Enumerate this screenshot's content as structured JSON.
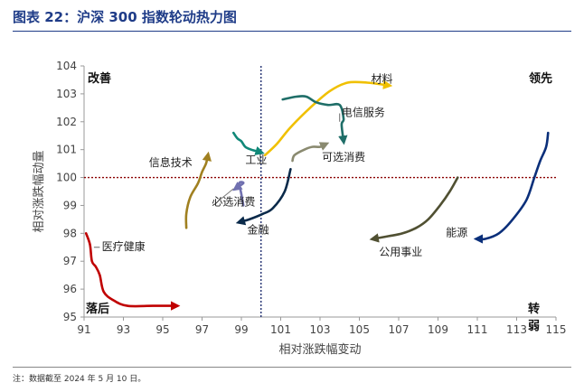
{
  "header": {
    "title": "图表 22：沪深 300 指数轮动热力图"
  },
  "footer": {
    "note": "注：数据截至 2024 年 5 月 10 日。"
  },
  "chart_data": {
    "type": "line",
    "xlabel": "相对涨跌幅变动",
    "ylabel": "相对涨跌幅动量",
    "xlim": [
      91,
      115
    ],
    "ylim": [
      95,
      104
    ],
    "x_ticks": [
      91,
      93,
      95,
      97,
      99,
      101,
      103,
      105,
      107,
      109,
      111,
      113,
      115
    ],
    "y_ticks": [
      95,
      96,
      97,
      98,
      99,
      100,
      101,
      102,
      103,
      104
    ],
    "x_tick_labels": [
      "91",
      "93",
      "95",
      "97",
      "99",
      "101",
      "103",
      "105",
      "107",
      "109",
      "111",
      "113",
      "115"
    ],
    "y_tick_labels": [
      "95",
      "96",
      "97",
      "98",
      "99",
      "100",
      "101",
      "102",
      "103",
      "104"
    ],
    "ref_x": 100,
    "ref_y": 100,
    "quadrants": {
      "top_left": "改善",
      "top_right": "领先",
      "bottom_left": "落后",
      "bottom_right": "转弱"
    },
    "series": [
      {
        "name": "医疗健康",
        "color": "#c00000",
        "points": [
          [
            91.1,
            98.0
          ],
          [
            91.3,
            97.6
          ],
          [
            91.4,
            97.0
          ],
          [
            91.6,
            96.8
          ],
          [
            91.8,
            96.5
          ],
          [
            92.0,
            95.9
          ],
          [
            92.5,
            95.6
          ],
          [
            93.2,
            95.4
          ],
          [
            94.5,
            95.4
          ],
          [
            95.7,
            95.4
          ]
        ]
      },
      {
        "name": "信息技术",
        "color": "#a08020",
        "points": [
          [
            96.2,
            98.2
          ],
          [
            96.2,
            98.7
          ],
          [
            96.4,
            99.3
          ],
          [
            96.8,
            99.8
          ],
          [
            97.0,
            100.2
          ],
          [
            97.2,
            100.5
          ],
          [
            97.3,
            100.8
          ]
        ]
      },
      {
        "name": "必选消费",
        "color": "#7070b0",
        "points": [
          [
            99.1,
            99.0
          ],
          [
            99.0,
            99.4
          ],
          [
            98.9,
            99.8
          ],
          [
            99.1,
            99.8
          ],
          [
            98.7,
            99.6
          ]
        ]
      },
      {
        "name": "工业",
        "color": "#108878",
        "points": [
          [
            98.6,
            101.6
          ],
          [
            98.8,
            101.4
          ],
          [
            99.0,
            101.3
          ],
          [
            99.2,
            101.1
          ],
          [
            99.5,
            101.0
          ],
          [
            100.0,
            100.9
          ]
        ]
      },
      {
        "name": "材料",
        "color": "#f0c000",
        "points": [
          [
            100.2,
            100.8
          ],
          [
            100.8,
            101.2
          ],
          [
            101.5,
            101.8
          ],
          [
            102.5,
            102.5
          ],
          [
            103.5,
            103.1
          ],
          [
            104.4,
            103.4
          ],
          [
            105.4,
            103.4
          ],
          [
            106.5,
            103.3
          ]
        ]
      },
      {
        "name": "电信服务",
        "color": "#1f6e68",
        "points": [
          [
            101.1,
            102.8
          ],
          [
            101.8,
            102.9
          ],
          [
            102.3,
            102.9
          ],
          [
            102.8,
            102.7
          ],
          [
            103.4,
            102.6
          ],
          [
            104.0,
            102.6
          ],
          [
            104.2,
            102.1
          ],
          [
            104.1,
            101.9
          ],
          [
            104.2,
            101.3
          ]
        ]
      },
      {
        "name": "可选消费",
        "color": "#8a8a70",
        "points": [
          [
            101.6,
            100.6
          ],
          [
            101.7,
            100.8
          ],
          [
            102.2,
            101.0
          ],
          [
            102.6,
            101.1
          ],
          [
            103.0,
            101.1
          ],
          [
            103.3,
            101.2
          ]
        ]
      },
      {
        "name": "金融",
        "color": "#0a2a4a",
        "points": [
          [
            101.5,
            100.3
          ],
          [
            101.2,
            99.5
          ],
          [
            100.6,
            98.9
          ],
          [
            100.1,
            98.7
          ],
          [
            99.4,
            98.5
          ],
          [
            98.9,
            98.4
          ]
        ]
      },
      {
        "name": "公用事业",
        "color": "#505032",
        "points": [
          [
            110.0,
            100.0
          ],
          [
            109.6,
            99.5
          ],
          [
            109.1,
            99.0
          ],
          [
            108.5,
            98.5
          ],
          [
            107.9,
            98.2
          ],
          [
            107.2,
            98.0
          ],
          [
            106.5,
            97.9
          ],
          [
            105.7,
            97.8
          ]
        ]
      },
      {
        "name": "能源",
        "color": "#0a2f7a",
        "points": [
          [
            114.6,
            101.6
          ],
          [
            114.5,
            101.1
          ],
          [
            114.2,
            100.6
          ],
          [
            113.9,
            100.0
          ],
          [
            113.5,
            99.2
          ],
          [
            112.8,
            98.5
          ],
          [
            112.1,
            98.0
          ],
          [
            111.4,
            97.8
          ],
          [
            111.0,
            97.8
          ]
        ]
      }
    ],
    "labels": {
      "医疗健康": [
        91.9,
        97.4
      ],
      "信息技术": [
        94.3,
        100.4
      ],
      "必选消费": [
        97.5,
        99.0
      ],
      "工业": [
        99.2,
        100.5
      ],
      "材料": [
        105.6,
        103.4
      ],
      "电信服务": [
        104.1,
        102.2
      ],
      "可选消费": [
        103.1,
        100.6
      ],
      "金融": [
        99.3,
        98.0
      ],
      "公用事业": [
        106.0,
        97.2
      ],
      "能源": [
        109.4,
        97.9
      ]
    }
  }
}
